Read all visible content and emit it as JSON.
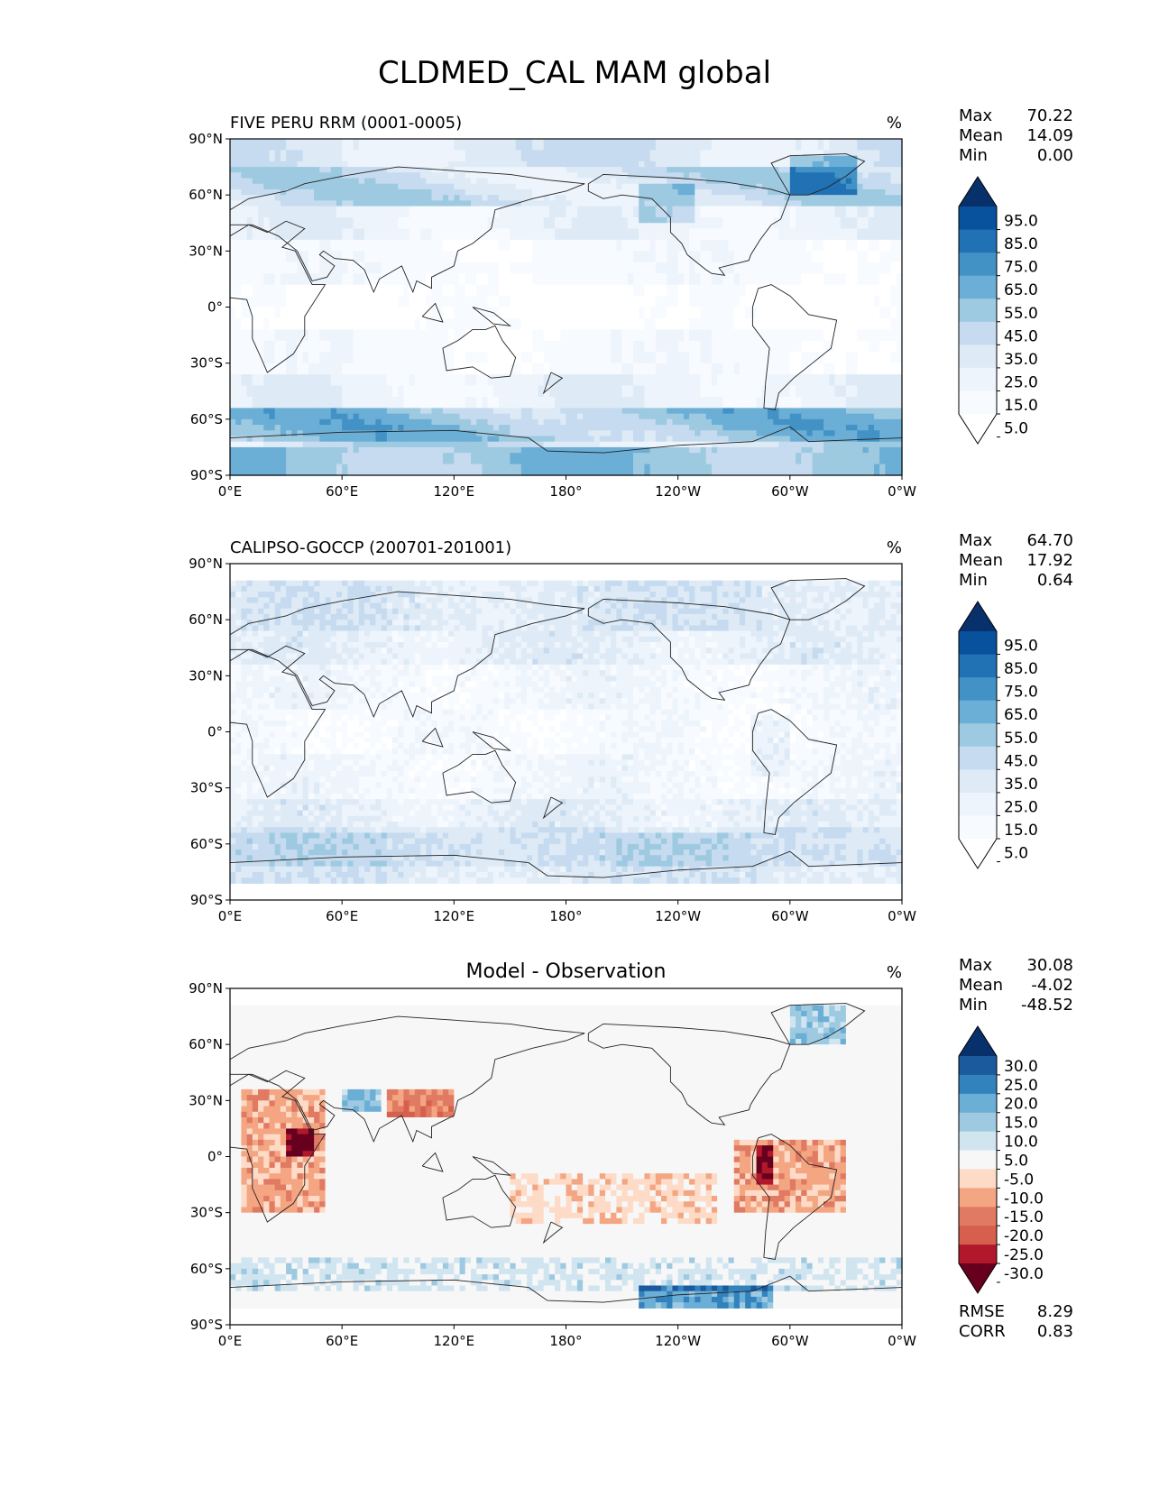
{
  "figure_title": "CLDMED_CAL MAM global",
  "axes": {
    "lat_ticks": [
      "90°N",
      "60°N",
      "30°N",
      "0°",
      "30°S",
      "60°S",
      "90°S"
    ],
    "lon_ticks": [
      "0°E",
      "60°E",
      "120°E",
      "180°",
      "120°W",
      "60°W",
      "0°W"
    ]
  },
  "chart_data": [
    {
      "type": "heatmap",
      "id": "test",
      "title_left": "FIVE PERU RRM (0001-0005)",
      "units": "%",
      "stats": [
        {
          "label": "Max",
          "value": "70.22"
        },
        {
          "label": "Mean",
          "value": "14.09"
        },
        {
          "label": "Min",
          "value": "0.00"
        }
      ],
      "colorbar": {
        "levels": [
          "95.0",
          "85.0",
          "75.0",
          "65.0",
          "55.0",
          "45.0",
          "35.0",
          "25.0",
          "15.0",
          "5.0"
        ],
        "colors": [
          "#08306b",
          "#08519c",
          "#2171b5",
          "#4292c6",
          "#6baed6",
          "#9ecae1",
          "#c6dbef",
          "#deebf7",
          "#eef4fb",
          "#f7fbff",
          "#ffffff"
        ]
      },
      "x_range": [
        0,
        360
      ],
      "y_range": [
        -90,
        90
      ]
    },
    {
      "type": "heatmap",
      "id": "ref",
      "title_left": "CALIPSO-GOCCP (200701-201001)",
      "units": "%",
      "stats": [
        {
          "label": "Max",
          "value": "64.70"
        },
        {
          "label": "Mean",
          "value": "17.92"
        },
        {
          "label": "Min",
          "value": "0.64"
        }
      ],
      "colorbar": {
        "levels": [
          "95.0",
          "85.0",
          "75.0",
          "65.0",
          "55.0",
          "45.0",
          "35.0",
          "25.0",
          "15.0",
          "5.0"
        ],
        "colors": [
          "#08306b",
          "#08519c",
          "#2171b5",
          "#4292c6",
          "#6baed6",
          "#9ecae1",
          "#c6dbef",
          "#deebf7",
          "#eef4fb",
          "#f7fbff",
          "#ffffff"
        ]
      },
      "x_range": [
        0,
        360
      ],
      "y_range": [
        -90,
        90
      ]
    },
    {
      "type": "heatmap",
      "id": "diff",
      "title_center": "Model - Observation",
      "units": "%",
      "stats": [
        {
          "label": "Max",
          "value": "30.08"
        },
        {
          "label": "Mean",
          "value": "-4.02"
        },
        {
          "label": "Min",
          "value": "-48.52"
        }
      ],
      "colorbar": {
        "levels": [
          "30.0",
          "25.0",
          "20.0",
          "15.0",
          "10.0",
          "5.0",
          "-5.0",
          "-10.0",
          "-15.0",
          "-20.0",
          "-25.0",
          "-30.0"
        ],
        "colors": [
          "#08306b",
          "#1c5a9e",
          "#3182bd",
          "#6baed6",
          "#9ecae1",
          "#d1e5f0",
          "#f7f7f7",
          "#fddbc7",
          "#f4a582",
          "#e07a62",
          "#d6604d",
          "#b2182b",
          "#67001f"
        ]
      },
      "footer_stats": [
        {
          "label": "RMSE",
          "value": "8.29"
        },
        {
          "label": "CORR",
          "value": "0.83"
        }
      ],
      "x_range": [
        0,
        360
      ],
      "y_range": [
        -90,
        90
      ]
    }
  ]
}
